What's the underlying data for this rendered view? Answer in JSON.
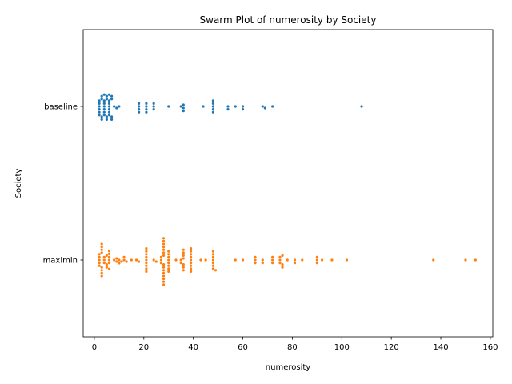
{
  "chart_data": {
    "type": "scatter",
    "subtype": "swarm",
    "title": "Swarm Plot of numerosity by Society",
    "xlabel": "numerosity",
    "ylabel": "Society",
    "xlim": [
      -4.5,
      161
    ],
    "xticks": [
      0,
      20,
      40,
      60,
      80,
      100,
      120,
      140,
      160
    ],
    "categories": [
      "baseline",
      "maximin"
    ],
    "grid": false,
    "legend": "none",
    "series": [
      {
        "category": "baseline",
        "color": "#1f77b4",
        "values": [
          2,
          2,
          2,
          2,
          2,
          2,
          3,
          3,
          3,
          3,
          4,
          4,
          4,
          4,
          4,
          4,
          4,
          5,
          5,
          5,
          5,
          6,
          6,
          6,
          6,
          6,
          6,
          6,
          7,
          7,
          7,
          7,
          8,
          9,
          10,
          18,
          18,
          18,
          18,
          21,
          21,
          21,
          21,
          24,
          24,
          24,
          30,
          35,
          36,
          36,
          36,
          44,
          48,
          48,
          48,
          48,
          48,
          54,
          54,
          57,
          60,
          60,
          68,
          69,
          72,
          108
        ]
      },
      {
        "category": "maximin",
        "color": "#ff7f0e",
        "values": [
          2,
          2,
          2,
          2,
          2,
          3,
          3,
          3,
          3,
          3,
          3,
          3,
          3,
          4,
          4,
          4,
          5,
          5,
          5,
          6,
          6,
          6,
          6,
          6,
          6,
          8,
          9,
          9,
          10,
          10,
          11,
          12,
          12,
          13,
          15,
          17,
          18,
          21,
          21,
          21,
          21,
          21,
          21,
          21,
          21,
          21,
          24,
          25,
          27,
          27,
          27,
          28,
          28,
          28,
          28,
          28,
          28,
          28,
          28,
          28,
          28,
          28,
          28,
          28,
          28,
          28,
          30,
          30,
          30,
          30,
          30,
          30,
          30,
          30,
          33,
          35,
          35,
          36,
          36,
          36,
          36,
          36,
          36,
          36,
          39,
          39,
          39,
          39,
          39,
          39,
          39,
          39,
          39,
          43,
          45,
          48,
          48,
          48,
          48,
          48,
          48,
          48,
          49,
          57,
          60,
          65,
          65,
          65,
          68,
          68,
          72,
          72,
          72,
          75,
          75,
          75,
          76,
          76,
          76,
          78,
          81,
          81,
          84,
          90,
          90,
          90,
          92,
          96,
          102,
          137,
          150,
          154
        ]
      }
    ]
  }
}
